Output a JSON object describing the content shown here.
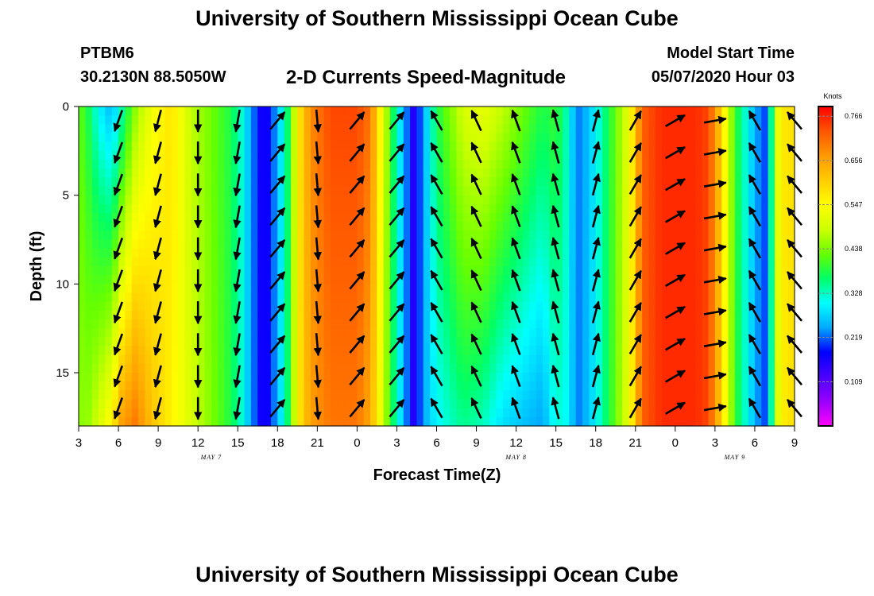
{
  "header": {
    "title": "University of Southern Mississippi Ocean Cube",
    "station": "PTBM6",
    "coords": "30.2130N 88.5050W",
    "subtitle": "2-D Currents Speed-Magnitude",
    "model_label": "Model Start Time",
    "model_time": "05/07/2020 Hour 03"
  },
  "footer": {
    "title": "University of Southern Mississippi Ocean Cube"
  },
  "chart_data": {
    "type": "heatmap",
    "xlabel": "Forecast Time(Z)",
    "ylabel": "Depth (ft)",
    "x_tick_labels": [
      "3",
      "6",
      "9",
      "12",
      "15",
      "18",
      "21",
      "0",
      "3",
      "6",
      "9",
      "12",
      "15",
      "18",
      "21",
      "0",
      "3",
      "6",
      "9"
    ],
    "x_range_hours": [
      0,
      54
    ],
    "y_tick_labels": [
      "0",
      "5",
      "10",
      "15"
    ],
    "y_ticks": [
      0,
      5,
      10,
      15
    ],
    "ylim": [
      0,
      18
    ],
    "day_labels": [
      {
        "text": "MAY 7",
        "hour": 10
      },
      {
        "text": "MAY 8",
        "hour": 33
      },
      {
        "text": "MAY 9",
        "hour": 49.5
      }
    ],
    "colorbar": {
      "title": "Knots",
      "ticks": [
        "0.766",
        "0.656",
        "0.547",
        "0.438",
        "0.328",
        "0.219",
        "0.109"
      ],
      "tick_values": [
        0.766,
        0.656,
        0.547,
        0.438,
        0.328,
        0.219,
        0.109
      ],
      "min": 0,
      "max": 0.79,
      "colors": [
        "#ff00ff",
        "#9900ff",
        "#4b00ff",
        "#0000ff",
        "#00aaff",
        "#00ffff",
        "#00ff66",
        "#66ff00",
        "#ccff00",
        "#ffff00",
        "#ffcc00",
        "#ff9900",
        "#ff5500",
        "#ff0000"
      ]
    },
    "speed_profile_hours": [
      0,
      0.5,
      1.5,
      2.5,
      3.2,
      4.3,
      5.5,
      7,
      8.5,
      10,
      11.5,
      12.2,
      13,
      14,
      15,
      16,
      16.5,
      17.5,
      19,
      21,
      22,
      24,
      25.3,
      26,
      27,
      29,
      30.5,
      32,
      33.5,
      35,
      36,
      37,
      37.5,
      38.5,
      40,
      41.5,
      42.5,
      44,
      46.5,
      47.5,
      48.5,
      49.5,
      51,
      51.5,
      52,
      52.5,
      53.5,
      54
    ],
    "speed_top_knots": [
      0.42,
      0.4,
      0.3,
      0.25,
      0.33,
      0.45,
      0.53,
      0.58,
      0.48,
      0.43,
      0.38,
      0.33,
      0.24,
      0.15,
      0.25,
      0.4,
      0.56,
      0.68,
      0.74,
      0.74,
      0.7,
      0.32,
      0.15,
      0.24,
      0.38,
      0.5,
      0.52,
      0.48,
      0.43,
      0.38,
      0.4,
      0.32,
      0.22,
      0.26,
      0.38,
      0.52,
      0.72,
      0.76,
      0.76,
      0.74,
      0.6,
      0.4,
      0.25,
      0.22,
      0.2,
      0.5,
      0.6,
      0.56
    ],
    "speed_bottom_knots": [
      0.46,
      0.44,
      0.5,
      0.56,
      0.66,
      0.7,
      0.62,
      0.56,
      0.5,
      0.44,
      0.38,
      0.33,
      0.24,
      0.15,
      0.25,
      0.4,
      0.56,
      0.66,
      0.7,
      0.7,
      0.65,
      0.32,
      0.15,
      0.24,
      0.3,
      0.35,
      0.33,
      0.28,
      0.26,
      0.24,
      0.32,
      0.3,
      0.22,
      0.26,
      0.38,
      0.52,
      0.72,
      0.76,
      0.76,
      0.74,
      0.6,
      0.4,
      0.25,
      0.22,
      0.2,
      0.48,
      0.6,
      0.56
    ],
    "vector_columns": [
      {
        "hour": 3.0,
        "angle_deg": 200
      },
      {
        "hour": 6.0,
        "angle_deg": 195
      },
      {
        "hour": 9.0,
        "angle_deg": 180
      },
      {
        "hour": 12.0,
        "angle_deg": 190
      },
      {
        "hour": 15.0,
        "angle_deg": 40
      },
      {
        "hour": 18.0,
        "angle_deg": 175
      },
      {
        "hour": 21.0,
        "angle_deg": 40
      },
      {
        "hour": 24.0,
        "angle_deg": 40
      },
      {
        "hour": 27.0,
        "angle_deg": 330
      },
      {
        "hour": 30.0,
        "angle_deg": 335
      },
      {
        "hour": 33.0,
        "angle_deg": 340
      },
      {
        "hour": 36.0,
        "angle_deg": 345
      },
      {
        "hour": 39.0,
        "angle_deg": 15
      },
      {
        "hour": 42.0,
        "angle_deg": 30
      },
      {
        "hour": 45.0,
        "angle_deg": 60
      },
      {
        "hour": 48.0,
        "angle_deg": 80
      },
      {
        "hour": 51.0,
        "angle_deg": 330
      },
      {
        "hour": 54.0,
        "angle_deg": 320
      }
    ],
    "vector_depths_ft": [
      0.8,
      2.6,
      4.4,
      6.2,
      8.0,
      9.8,
      11.6,
      13.4,
      15.2,
      17.0
    ]
  }
}
